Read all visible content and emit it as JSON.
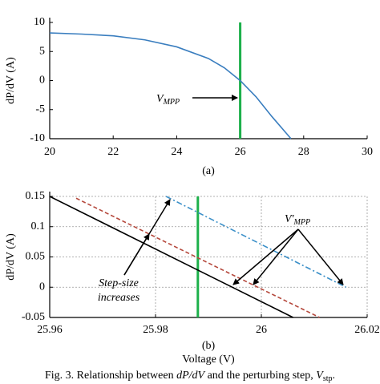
{
  "chart_data": [
    {
      "type": "line",
      "ylabel": "dP/dV (A)",
      "panel": "(a)",
      "x": [
        20,
        21,
        22,
        23,
        24,
        25,
        25.5,
        26,
        26.5,
        27,
        27.6
      ],
      "values": [
        8.2,
        8.0,
        7.7,
        7.0,
        5.8,
        3.8,
        2.2,
        0,
        -2.8,
        -6.2,
        -10
      ],
      "color": "#3a7ebf",
      "xlim": [
        20,
        30
      ],
      "xticks": [
        20,
        22,
        24,
        26,
        28,
        30
      ],
      "ylim": [
        -10,
        10
      ],
      "yticks": [
        -10,
        -5,
        0,
        5,
        10
      ],
      "grid": false,
      "vlines": [
        {
          "x": 26,
          "color": "#1db04b"
        }
      ],
      "annotation": {
        "text": "V",
        "sub": "MPP"
      }
    },
    {
      "type": "line",
      "ylabel": "dP/dV (A)",
      "xlabel": "Voltage (V)",
      "panel": "(b)",
      "series": [
        {
          "x": [
            25.96,
            26.006
          ],
          "values": [
            0.15,
            -0.05
          ],
          "color": "#000000",
          "dash": "solid"
        },
        {
          "x": [
            25.965,
            26.011
          ],
          "values": [
            0.147,
            -0.05
          ],
          "color": "#b5483c",
          "dash": "dashed"
        },
        {
          "x": [
            25.982,
            26.016
          ],
          "values": [
            0.15,
            0
          ],
          "color": "#3a8fc8",
          "dash": "dashdot"
        }
      ],
      "xlim": [
        25.96,
        26.02
      ],
      "xticks": [
        25.96,
        25.98,
        26,
        26.02
      ],
      "ylim": [
        -0.05,
        0.15
      ],
      "yticks": [
        -0.05,
        0,
        0.05,
        0.1,
        0.15
      ],
      "grid": true,
      "vlines": [
        {
          "x": 25.988,
          "color": "#1db04b"
        }
      ],
      "annotation": {
        "text": "V'",
        "sub": "MPP"
      },
      "note": [
        "Step-size",
        "increases"
      ]
    }
  ],
  "caption": [
    "Fig. 3. Relationship between ",
    "dP/dV",
    " and the perturbing step, ",
    "V",
    "stp",
    "."
  ]
}
